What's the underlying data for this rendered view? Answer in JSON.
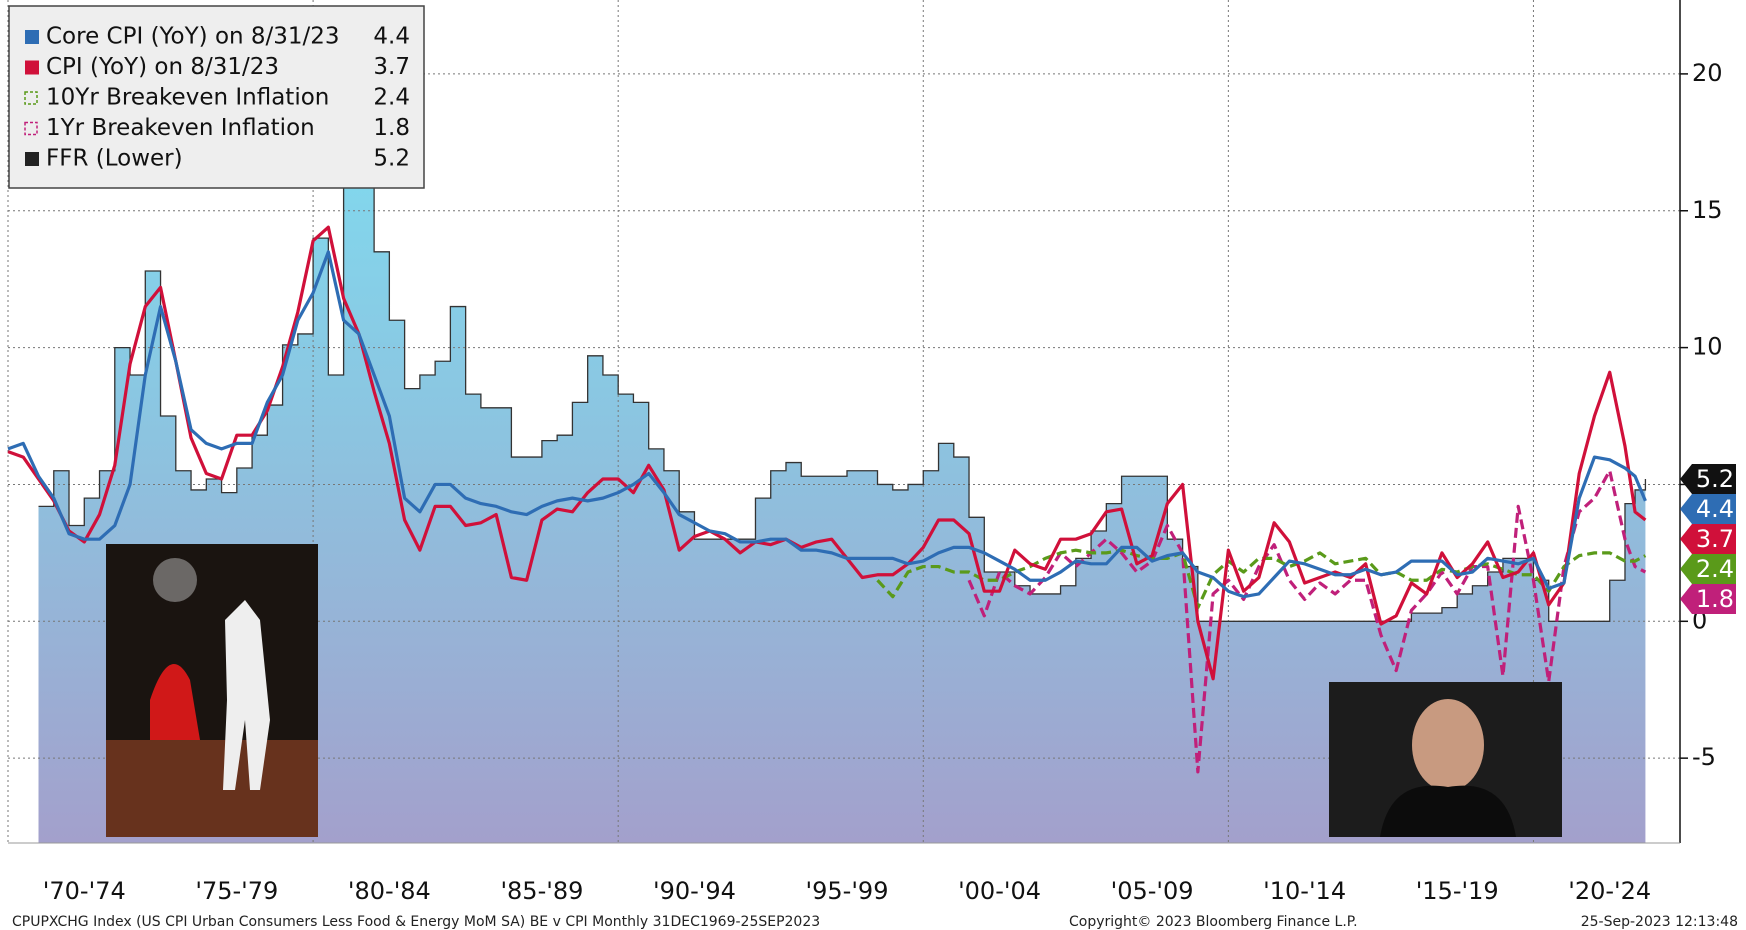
{
  "chart_data": {
    "type": "line",
    "xlim": [
      1970,
      2025
    ],
    "ylim": [
      -8.1,
      22.7
    ],
    "yticks": [
      -5,
      0,
      5,
      10,
      15,
      20
    ],
    "xticks": [
      {
        "value": 1972.5,
        "label": "'70-'74"
      },
      {
        "value": 1977.5,
        "label": "'75-'79"
      },
      {
        "value": 1982.5,
        "label": "'80-'84"
      },
      {
        "value": 1987.5,
        "label": "'85-'89"
      },
      {
        "value": 1992.5,
        "label": "'90-'94"
      },
      {
        "value": 1997.5,
        "label": "'95-'99"
      },
      {
        "value": 2002.5,
        "label": "'00-'04"
      },
      {
        "value": 2007.5,
        "label": "'05-'09"
      },
      {
        "value": 2012.5,
        "label": "'10-'14"
      },
      {
        "value": 2017.5,
        "label": "'15-'19"
      },
      {
        "value": 2022.5,
        "label": "'20-'24"
      }
    ],
    "xgrid": [
      1980,
      1990,
      2000,
      2010,
      2020
    ],
    "grid": true,
    "legend": "top-left",
    "series": [
      {
        "name": "Core CPI (YoY) on 8/31/23",
        "color": "#2e6db4",
        "style": "solid",
        "x": [
          1970,
          1970.5,
          1971,
          1971.5,
          1972,
          1972.5,
          1973,
          1973.5,
          1974,
          1974.5,
          1975,
          1975.5,
          1976,
          1976.5,
          1977,
          1977.5,
          1978,
          1978.5,
          1979,
          1979.5,
          1980,
          1980.5,
          1981,
          1981.5,
          1982,
          1982.5,
          1983,
          1983.5,
          1984,
          1984.5,
          1985,
          1985.5,
          1986,
          1986.5,
          1987,
          1987.5,
          1988,
          1988.5,
          1989,
          1989.5,
          1990,
          1990.5,
          1991,
          1991.5,
          1992,
          1992.5,
          1993,
          1993.5,
          1994,
          1994.5,
          1995,
          1995.5,
          1996,
          1996.5,
          1997,
          1997.5,
          1998,
          1998.5,
          1999,
          1999.5,
          2000,
          2000.5,
          2001,
          2001.5,
          2002,
          2002.5,
          2003,
          2003.5,
          2004,
          2004.5,
          2005,
          2005.5,
          2006,
          2006.5,
          2007,
          2007.5,
          2008,
          2008.5,
          2009,
          2009.5,
          2010,
          2010.5,
          2011,
          2011.5,
          2012,
          2012.5,
          2013,
          2013.5,
          2014,
          2014.5,
          2015,
          2015.5,
          2016,
          2016.5,
          2017,
          2017.5,
          2018,
          2018.5,
          2019,
          2019.5,
          2020,
          2020.5,
          2021,
          2021.5,
          2022,
          2022.5,
          2023,
          2023.33,
          2023.67
        ],
        "values": [
          6.3,
          6.5,
          5.3,
          4.5,
          3.2,
          3.0,
          3.0,
          3.5,
          5.0,
          9.0,
          11.5,
          9.5,
          7.0,
          6.5,
          6.3,
          6.5,
          6.5,
          8.0,
          9.0,
          11.0,
          12.0,
          13.5,
          11.0,
          10.5,
          9.0,
          7.5,
          4.5,
          4.0,
          5.0,
          5.0,
          4.5,
          4.3,
          4.2,
          4.0,
          3.9,
          4.2,
          4.4,
          4.5,
          4.4,
          4.5,
          4.7,
          5.0,
          5.4,
          4.7,
          3.9,
          3.6,
          3.3,
          3.2,
          2.9,
          2.9,
          3.0,
          3.0,
          2.6,
          2.6,
          2.5,
          2.3,
          2.3,
          2.3,
          2.3,
          2.1,
          2.2,
          2.5,
          2.7,
          2.7,
          2.5,
          2.2,
          1.9,
          1.5,
          1.5,
          1.8,
          2.2,
          2.1,
          2.1,
          2.7,
          2.7,
          2.2,
          2.4,
          2.5,
          1.8,
          1.6,
          1.1,
          0.9,
          1.0,
          1.6,
          2.2,
          2.1,
          1.9,
          1.7,
          1.7,
          1.9,
          1.7,
          1.8,
          2.2,
          2.2,
          2.2,
          1.7,
          1.8,
          2.3,
          2.2,
          2.1,
          2.3,
          1.2,
          1.4,
          4.5,
          6.0,
          5.9,
          5.6,
          5.3,
          4.4
        ]
      },
      {
        "name": "CPI (YoY) on 8/31/23",
        "color": "#d0103a",
        "style": "solid",
        "x": [
          1970,
          1970.5,
          1971,
          1971.5,
          1972,
          1972.5,
          1973,
          1973.5,
          1974,
          1974.5,
          1975,
          1975.5,
          1976,
          1976.5,
          1977,
          1977.5,
          1978,
          1978.5,
          1979,
          1979.5,
          1980,
          1980.5,
          1981,
          1981.5,
          1982,
          1982.5,
          1983,
          1983.5,
          1984,
          1984.5,
          1985,
          1985.5,
          1986,
          1986.5,
          1987,
          1987.5,
          1988,
          1988.5,
          1989,
          1989.5,
          1990,
          1990.5,
          1991,
          1991.5,
          1992,
          1992.5,
          1993,
          1993.5,
          1994,
          1994.5,
          1995,
          1995.5,
          1996,
          1996.5,
          1997,
          1997.5,
          1998,
          1998.5,
          1999,
          1999.5,
          2000,
          2000.5,
          2001,
          2001.5,
          2002,
          2002.5,
          2003,
          2003.5,
          2004,
          2004.5,
          2005,
          2005.5,
          2006,
          2006.5,
          2007,
          2007.5,
          2008,
          2008.5,
          2009,
          2009.5,
          2010,
          2010.5,
          2011,
          2011.5,
          2012,
          2012.5,
          2013,
          2013.5,
          2014,
          2014.5,
          2015,
          2015.5,
          2016,
          2016.5,
          2017,
          2017.5,
          2018,
          2018.5,
          2019,
          2019.5,
          2020,
          2020.5,
          2021,
          2021.5,
          2022,
          2022.5,
          2023,
          2023.33,
          2023.67
        ],
        "values": [
          6.2,
          6.0,
          5.2,
          4.4,
          3.3,
          2.9,
          3.9,
          5.7,
          9.4,
          11.5,
          12.2,
          9.5,
          6.7,
          5.4,
          5.2,
          6.8,
          6.8,
          7.7,
          9.3,
          11.3,
          13.9,
          14.4,
          11.8,
          10.5,
          8.4,
          6.5,
          3.7,
          2.6,
          4.2,
          4.2,
          3.5,
          3.6,
          3.9,
          1.6,
          1.5,
          3.7,
          4.1,
          4.0,
          4.7,
          5.2,
          5.2,
          4.7,
          5.7,
          4.8,
          2.6,
          3.1,
          3.3,
          3.0,
          2.5,
          2.9,
          2.8,
          3.0,
          2.7,
          2.9,
          3.0,
          2.3,
          1.6,
          1.7,
          1.7,
          2.1,
          2.7,
          3.7,
          3.7,
          3.2,
          1.1,
          1.1,
          2.6,
          2.1,
          1.9,
          3.0,
          3.0,
          3.2,
          4.0,
          4.1,
          2.1,
          2.4,
          4.3,
          5.0,
          0.0,
          -2.1,
          2.6,
          1.1,
          1.6,
          3.6,
          2.9,
          1.4,
          1.6,
          1.8,
          1.6,
          2.1,
          -0.1,
          0.2,
          1.4,
          1.0,
          2.5,
          1.6,
          2.1,
          2.9,
          1.6,
          1.8,
          2.5,
          0.6,
          1.4,
          5.4,
          7.5,
          9.1,
          6.4,
          4.0,
          3.7
        ]
      },
      {
        "name": "10Yr Breakeven Inflation",
        "color": "#5a9a1a",
        "style": "dash",
        "x": [
          1998.5,
          1999,
          1999.5,
          2000,
          2000.5,
          2001,
          2001.5,
          2002,
          2002.5,
          2003,
          2003.5,
          2004,
          2004.5,
          2005,
          2005.5,
          2006,
          2006.5,
          2007,
          2007.5,
          2008,
          2008.5,
          2009,
          2009.5,
          2010,
          2010.5,
          2011,
          2011.5,
          2012,
          2012.5,
          2013,
          2013.5,
          2014,
          2014.5,
          2015,
          2015.5,
          2016,
          2016.5,
          2017,
          2017.5,
          2018,
          2018.5,
          2019,
          2019.5,
          2020,
          2020.5,
          2021,
          2021.5,
          2022,
          2022.5,
          2023,
          2023.33,
          2023.67
        ],
        "values": [
          1.5,
          0.9,
          1.8,
          2.0,
          2.0,
          1.8,
          1.8,
          1.5,
          1.5,
          1.8,
          2.0,
          2.3,
          2.5,
          2.6,
          2.5,
          2.5,
          2.6,
          2.4,
          2.3,
          2.3,
          2.5,
          0.5,
          1.7,
          2.2,
          1.8,
          2.3,
          2.3,
          2.0,
          2.2,
          2.5,
          2.1,
          2.2,
          2.3,
          1.7,
          1.8,
          1.5,
          1.5,
          1.9,
          1.8,
          2.0,
          2.1,
          1.9,
          1.7,
          1.7,
          1.1,
          2.0,
          2.4,
          2.5,
          2.5,
          2.2,
          2.2,
          2.4
        ]
      },
      {
        "name": "1Yr Breakeven Inflation",
        "color": "#c0207a",
        "style": "dash",
        "x": [
          2001.5,
          2002,
          2002.5,
          2003,
          2003.5,
          2004,
          2004.5,
          2005,
          2005.5,
          2006,
          2006.5,
          2007,
          2007.5,
          2008,
          2008.5,
          2009,
          2009.5,
          2010,
          2010.5,
          2011,
          2011.5,
          2012,
          2012.5,
          2013,
          2013.5,
          2014,
          2014.5,
          2015,
          2015.5,
          2016,
          2016.5,
          2017,
          2017.5,
          2018,
          2018.5,
          2019,
          2019.5,
          2020,
          2020.5,
          2021,
          2021.5,
          2022,
          2022.5,
          2023,
          2023.33,
          2023.67
        ],
        "values": [
          1.5,
          0.2,
          1.8,
          1.3,
          1.0,
          1.6,
          2.5,
          2.0,
          2.5,
          3.0,
          2.5,
          1.8,
          2.2,
          3.5,
          2.5,
          -5.5,
          1.0,
          1.5,
          0.8,
          2.0,
          2.8,
          1.5,
          0.8,
          1.4,
          1.0,
          1.5,
          1.5,
          -0.5,
          -1.8,
          0.4,
          1.0,
          1.8,
          1.0,
          2.0,
          2.0,
          -2.0,
          4.2,
          1.5,
          -2.2,
          2.0,
          4.0,
          4.5,
          5.5,
          3.0,
          2.0,
          1.8
        ]
      },
      {
        "name": "FFR (Lower)",
        "color": "#222222",
        "style": "area",
        "x": [
          1971,
          1971.5,
          1972,
          1972.5,
          1973,
          1973.5,
          1974,
          1974.5,
          1975,
          1975.5,
          1976,
          1976.5,
          1977,
          1977.5,
          1978,
          1978.5,
          1979,
          1979.5,
          1980,
          1980.5,
          1981,
          1981.5,
          1982,
          1982.5,
          1983,
          1983.5,
          1984,
          1984.5,
          1985,
          1985.5,
          1986,
          1986.5,
          1987,
          1987.5,
          1988,
          1988.5,
          1989,
          1989.5,
          1990,
          1990.5,
          1991,
          1991.5,
          1992,
          1992.5,
          1993,
          1993.5,
          1994,
          1994.5,
          1995,
          1995.5,
          1996,
          1996.5,
          1997,
          1997.5,
          1998,
          1998.5,
          1999,
          1999.5,
          2000,
          2000.5,
          2001,
          2001.5,
          2002,
          2002.5,
          2003,
          2003.5,
          2004,
          2004.5,
          2005,
          2005.5,
          2006,
          2006.5,
          2007,
          2007.5,
          2008,
          2008.5,
          2009,
          2009.5,
          2010,
          2010.5,
          2011,
          2011.5,
          2012,
          2012.5,
          2013,
          2013.5,
          2014,
          2014.5,
          2015,
          2015.5,
          2016,
          2016.5,
          2017,
          2017.5,
          2018,
          2018.5,
          2019,
          2019.5,
          2020,
          2020.5,
          2021,
          2021.5,
          2022,
          2022.5,
          2023,
          2023.33,
          2023.67
        ],
        "values": [
          4.2,
          5.5,
          3.5,
          4.5,
          5.5,
          10.0,
          9.0,
          12.8,
          7.5,
          5.5,
          4.8,
          5.2,
          4.7,
          5.6,
          6.8,
          7.9,
          10.1,
          10.5,
          14.0,
          9.0,
          19.0,
          19.0,
          13.5,
          11.0,
          8.5,
          9.0,
          9.5,
          11.5,
          8.3,
          7.8,
          7.8,
          6.0,
          6.0,
          6.6,
          6.8,
          8.0,
          9.7,
          9.0,
          8.3,
          8.0,
          6.3,
          5.5,
          4.0,
          3.0,
          3.0,
          3.0,
          3.0,
          4.5,
          5.5,
          5.8,
          5.3,
          5.3,
          5.3,
          5.5,
          5.5,
          5.0,
          4.8,
          5.0,
          5.5,
          6.5,
          6.0,
          3.8,
          1.8,
          1.8,
          1.3,
          1.0,
          1.0,
          1.3,
          2.3,
          3.3,
          4.3,
          5.3,
          5.3,
          5.3,
          3.0,
          2.0,
          0,
          0,
          0,
          0,
          0,
          0,
          0,
          0,
          0,
          0,
          0,
          0,
          0,
          0,
          0.3,
          0.3,
          0.5,
          1.0,
          1.3,
          1.8,
          2.3,
          2.3,
          1.5,
          0,
          0,
          0,
          0,
          1.5,
          4.3,
          4.8,
          5.2
        ]
      }
    ],
    "footer_left": "CPUPXCHG Index (US CPI Urban Consumers Less Food & Energy MoM SA) BE v CPI  Monthly 31DEC1969-25SEP2023",
    "footer_center": "Copyright© 2023 Bloomberg Finance L.P.",
    "footer_right": "25-Sep-2023 12:13:48"
  }
}
